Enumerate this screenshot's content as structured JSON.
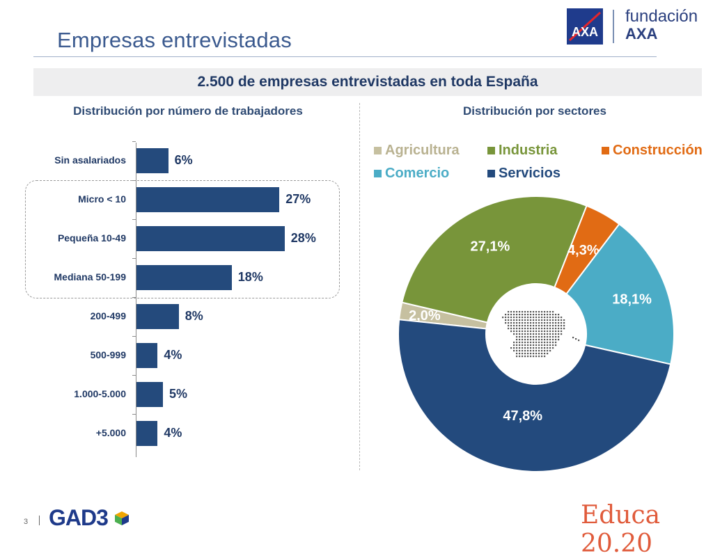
{
  "header": {
    "title": "Empresas entrevistadas",
    "logo_axa": "AXA",
    "logo_fundacion": "fundación",
    "logo_fundacion_brand": "AXA"
  },
  "banner": {
    "text": "2.500 de empresas entrevistadas en toda España"
  },
  "colors": {
    "navy": "#244a7c",
    "agricultura": "#c6c0a0",
    "industria": "#78953a",
    "construccion": "#e16b14",
    "comercio": "#4bacc6",
    "servicios": "#234a7d"
  },
  "chart_data": [
    {
      "type": "bar",
      "orientation": "horizontal",
      "title": "Distribución por número de trabajadores",
      "categories": [
        "Sin asalariados",
        "Micro < 10",
        "Pequeña 10-49",
        "Mediana 50-199",
        "200-499",
        "500-999",
        "1.000-5.000",
        "+5.000"
      ],
      "values": [
        6,
        27,
        28,
        18,
        8,
        4,
        5,
        4
      ],
      "value_labels": [
        "6%",
        "27%",
        "28%",
        "18%",
        "8%",
        "4%",
        "5%",
        "4%"
      ],
      "unit": "%",
      "highlight_group": [
        "Micro < 10",
        "Pequeña 10-49",
        "Mediana 50-199"
      ]
    },
    {
      "type": "pie",
      "subtype": "donut",
      "title": "Distribución por sectores",
      "labels": [
        "Agricultura",
        "Industria",
        "Construcción",
        "Comercio",
        "Servicios"
      ],
      "values": [
        2.0,
        27.1,
        4.3,
        18.1,
        47.8
      ],
      "value_labels": [
        "2,0%",
        "27,1%",
        "4,3%",
        "18,1%",
        "47,8%"
      ],
      "legend_position": "top",
      "center_icon": "spain-map-icon"
    }
  ],
  "footer": {
    "page_number": "3",
    "left_logo": "GAD3",
    "right_logo": "Educa 20.20"
  }
}
